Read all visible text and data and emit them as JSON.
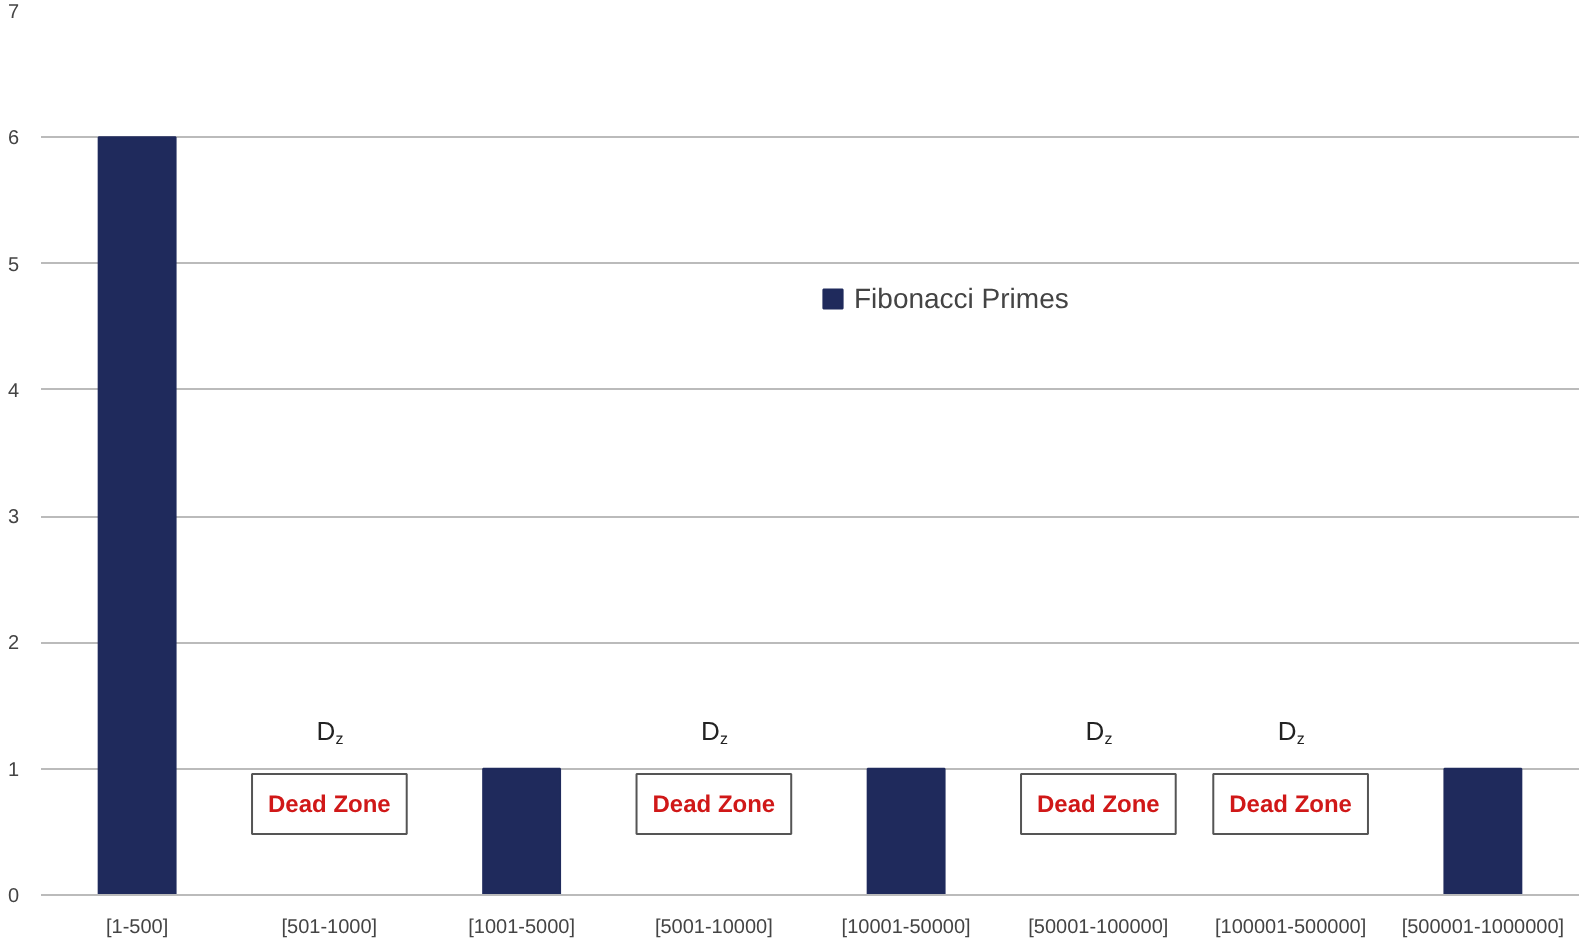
{
  "chart_data": {
    "type": "bar",
    "categories": [
      "[1-500]",
      "[501-1000]",
      "[1001-5000]",
      "[5001-10000]",
      "[10001-50000]",
      "[50001-100000]",
      "[100001-500000]",
      "[500001-1000000]"
    ],
    "series": [
      {
        "name": "Fibonacci Primes",
        "color": "#1f2a5c",
        "values": [
          6,
          0,
          1,
          0,
          1,
          0,
          0,
          1
        ]
      }
    ],
    "ylim": [
      0,
      7
    ],
    "yticks": [
      0,
      1,
      2,
      3,
      4,
      5,
      6,
      7
    ],
    "grid": "y",
    "legend": "top",
    "annotations": [
      "D$_{z}$",
      "Dead Zone",
      "D$_{z}$",
      "Dead Zone",
      "D$_{z}$",
      "Dead Zone",
      "D$_{z}$",
      "Dead Zone"
    ]
  }
}
